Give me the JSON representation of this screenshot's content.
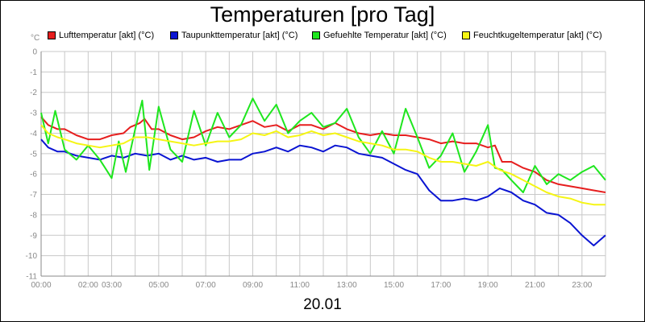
{
  "unit": "°C",
  "date": "20.01",
  "colors": {
    "Lufttemperatur": "#e61e1e",
    "Taupunkttemperatur": "#0a14d2",
    "Gefuehlte": "#1ee61e",
    "Feuchtkugel": "#f5f514"
  },
  "chart_data": {
    "type": "line",
    "title": "Temperaturen [pro Tag]",
    "xlabel": "20.01",
    "ylabel": "°C",
    "xlim": [
      0,
      24
    ],
    "ylim": [
      -11,
      0
    ],
    "x_ticks": [
      "00:00",
      "02:00",
      "03:00",
      "05:00",
      "07:00",
      "09:00",
      "11:00",
      "13:00",
      "15:00",
      "17:00",
      "19:00",
      "21:00",
      "23:00"
    ],
    "y_ticks": [
      "0",
      "-1",
      "-2",
      "-3",
      "-4",
      "-5",
      "-6",
      "-7",
      "-8",
      "-9",
      "-10",
      "-11"
    ],
    "series": [
      {
        "name": "Lufttemperatur [akt] (°C)",
        "color": "#e61e1e",
        "points": [
          [
            0,
            -3.2
          ],
          [
            0.3,
            -3.6
          ],
          [
            0.7,
            -3.8
          ],
          [
            1.0,
            -3.8
          ],
          [
            1.5,
            -4.1
          ],
          [
            2.0,
            -4.3
          ],
          [
            2.5,
            -4.3
          ],
          [
            3.0,
            -4.1
          ],
          [
            3.5,
            -4.0
          ],
          [
            3.8,
            -3.7
          ],
          [
            4.2,
            -3.5
          ],
          [
            4.4,
            -3.3
          ],
          [
            4.7,
            -3.8
          ],
          [
            5.0,
            -3.8
          ],
          [
            5.5,
            -4.1
          ],
          [
            6.0,
            -4.3
          ],
          [
            6.5,
            -4.2
          ],
          [
            7.0,
            -3.9
          ],
          [
            7.5,
            -3.7
          ],
          [
            8.0,
            -3.8
          ],
          [
            8.5,
            -3.6
          ],
          [
            9.0,
            -3.4
          ],
          [
            9.5,
            -3.7
          ],
          [
            10.0,
            -3.6
          ],
          [
            10.5,
            -3.9
          ],
          [
            11.0,
            -3.6
          ],
          [
            11.5,
            -3.6
          ],
          [
            12.0,
            -3.8
          ],
          [
            12.5,
            -3.5
          ],
          [
            13.0,
            -3.8
          ],
          [
            13.5,
            -4.0
          ],
          [
            14.0,
            -4.1
          ],
          [
            14.5,
            -4.0
          ],
          [
            15.0,
            -4.1
          ],
          [
            15.5,
            -4.1
          ],
          [
            16.0,
            -4.2
          ],
          [
            16.5,
            -4.3
          ],
          [
            17.0,
            -4.5
          ],
          [
            17.5,
            -4.4
          ],
          [
            18.0,
            -4.5
          ],
          [
            18.5,
            -4.5
          ],
          [
            19.0,
            -4.7
          ],
          [
            19.3,
            -4.6
          ],
          [
            19.6,
            -5.4
          ],
          [
            20.0,
            -5.4
          ],
          [
            20.5,
            -5.7
          ],
          [
            21.0,
            -5.9
          ],
          [
            21.5,
            -6.3
          ],
          [
            22.0,
            -6.5
          ],
          [
            22.5,
            -6.6
          ],
          [
            23.0,
            -6.7
          ],
          [
            23.5,
            -6.8
          ],
          [
            24.0,
            -6.9
          ]
        ]
      },
      {
        "name": "Taupunkttemperatur [akt] (°C)",
        "color": "#0a14d2",
        "points": [
          [
            0,
            -4.3
          ],
          [
            0.3,
            -4.7
          ],
          [
            0.7,
            -4.9
          ],
          [
            1.0,
            -4.9
          ],
          [
            1.5,
            -5.1
          ],
          [
            2.0,
            -5.2
          ],
          [
            2.5,
            -5.3
          ],
          [
            3.0,
            -5.1
          ],
          [
            3.5,
            -5.2
          ],
          [
            4.0,
            -5.0
          ],
          [
            4.5,
            -5.1
          ],
          [
            5.0,
            -5.0
          ],
          [
            5.5,
            -5.3
          ],
          [
            6.0,
            -5.1
          ],
          [
            6.5,
            -5.3
          ],
          [
            7.0,
            -5.2
          ],
          [
            7.5,
            -5.4
          ],
          [
            8.0,
            -5.3
          ],
          [
            8.5,
            -5.3
          ],
          [
            9.0,
            -5.0
          ],
          [
            9.5,
            -4.9
          ],
          [
            10.0,
            -4.7
          ],
          [
            10.5,
            -4.9
          ],
          [
            11.0,
            -4.6
          ],
          [
            11.5,
            -4.7
          ],
          [
            12.0,
            -4.9
          ],
          [
            12.5,
            -4.6
          ],
          [
            13.0,
            -4.7
          ],
          [
            13.5,
            -5.0
          ],
          [
            14.0,
            -5.1
          ],
          [
            14.5,
            -5.2
          ],
          [
            15.0,
            -5.5
          ],
          [
            15.5,
            -5.8
          ],
          [
            16.0,
            -6.0
          ],
          [
            16.5,
            -6.8
          ],
          [
            17.0,
            -7.3
          ],
          [
            17.5,
            -7.3
          ],
          [
            18.0,
            -7.2
          ],
          [
            18.5,
            -7.3
          ],
          [
            19.0,
            -7.1
          ],
          [
            19.5,
            -6.7
          ],
          [
            20.0,
            -6.9
          ],
          [
            20.5,
            -7.3
          ],
          [
            21.0,
            -7.5
          ],
          [
            21.5,
            -7.9
          ],
          [
            22.0,
            -8.0
          ],
          [
            22.5,
            -8.4
          ],
          [
            23.0,
            -9.0
          ],
          [
            23.5,
            -9.5
          ],
          [
            24.0,
            -9.0
          ]
        ]
      },
      {
        "name": "Gefuehlte Temperatur [akt] (°C)",
        "color": "#1ee61e",
        "points": [
          [
            0,
            -3.0
          ],
          [
            0.3,
            -4.5
          ],
          [
            0.6,
            -2.9
          ],
          [
            1.0,
            -4.8
          ],
          [
            1.5,
            -5.3
          ],
          [
            2.0,
            -4.6
          ],
          [
            2.5,
            -5.3
          ],
          [
            3.0,
            -6.2
          ],
          [
            3.3,
            -4.4
          ],
          [
            3.6,
            -5.9
          ],
          [
            4.0,
            -3.8
          ],
          [
            4.3,
            -2.4
          ],
          [
            4.6,
            -5.8
          ],
          [
            5.0,
            -2.7
          ],
          [
            5.5,
            -4.8
          ],
          [
            6.0,
            -5.4
          ],
          [
            6.5,
            -2.9
          ],
          [
            7.0,
            -4.6
          ],
          [
            7.5,
            -3.0
          ],
          [
            8.0,
            -4.2
          ],
          [
            8.5,
            -3.6
          ],
          [
            9.0,
            -2.3
          ],
          [
            9.5,
            -3.4
          ],
          [
            10.0,
            -2.6
          ],
          [
            10.5,
            -4.0
          ],
          [
            11.0,
            -3.4
          ],
          [
            11.5,
            -3.0
          ],
          [
            12.0,
            -3.7
          ],
          [
            12.5,
            -3.5
          ],
          [
            13.0,
            -2.8
          ],
          [
            13.5,
            -4.2
          ],
          [
            14.0,
            -5.0
          ],
          [
            14.5,
            -3.9
          ],
          [
            15.0,
            -5.0
          ],
          [
            15.5,
            -2.8
          ],
          [
            16.0,
            -4.2
          ],
          [
            16.5,
            -5.7
          ],
          [
            17.0,
            -5.1
          ],
          [
            17.5,
            -4.0
          ],
          [
            18.0,
            -5.9
          ],
          [
            18.5,
            -4.9
          ],
          [
            19.0,
            -3.6
          ],
          [
            19.3,
            -5.7
          ],
          [
            19.6,
            -5.8
          ],
          [
            20.0,
            -6.3
          ],
          [
            20.5,
            -6.9
          ],
          [
            21.0,
            -5.6
          ],
          [
            21.5,
            -6.5
          ],
          [
            22.0,
            -6.0
          ],
          [
            22.5,
            -6.3
          ],
          [
            23.0,
            -5.9
          ],
          [
            23.5,
            -5.6
          ],
          [
            24.0,
            -6.3
          ]
        ]
      },
      {
        "name": "Feuchtkugeltemperatur [akt] (°C)",
        "color": "#f5f514",
        "points": [
          [
            0,
            -3.6
          ],
          [
            0.3,
            -4.0
          ],
          [
            0.7,
            -4.2
          ],
          [
            1.0,
            -4.3
          ],
          [
            1.5,
            -4.5
          ],
          [
            2.0,
            -4.6
          ],
          [
            2.5,
            -4.7
          ],
          [
            3.0,
            -4.6
          ],
          [
            3.5,
            -4.5
          ],
          [
            4.0,
            -4.2
          ],
          [
            4.5,
            -4.2
          ],
          [
            5.0,
            -4.3
          ],
          [
            5.5,
            -4.4
          ],
          [
            6.0,
            -4.5
          ],
          [
            6.5,
            -4.6
          ],
          [
            7.0,
            -4.5
          ],
          [
            7.5,
            -4.4
          ],
          [
            8.0,
            -4.4
          ],
          [
            8.5,
            -4.3
          ],
          [
            9.0,
            -4.0
          ],
          [
            9.5,
            -4.1
          ],
          [
            10.0,
            -3.9
          ],
          [
            10.5,
            -4.2
          ],
          [
            11.0,
            -4.1
          ],
          [
            11.5,
            -3.9
          ],
          [
            12.0,
            -4.1
          ],
          [
            12.5,
            -4.0
          ],
          [
            13.0,
            -4.2
          ],
          [
            13.5,
            -4.4
          ],
          [
            14.0,
            -4.5
          ],
          [
            14.5,
            -4.6
          ],
          [
            15.0,
            -4.8
          ],
          [
            15.5,
            -4.8
          ],
          [
            16.0,
            -4.9
          ],
          [
            16.5,
            -5.2
          ],
          [
            17.0,
            -5.4
          ],
          [
            17.5,
            -5.4
          ],
          [
            18.0,
            -5.5
          ],
          [
            18.5,
            -5.6
          ],
          [
            19.0,
            -5.4
          ],
          [
            19.5,
            -5.8
          ],
          [
            20.0,
            -6.0
          ],
          [
            20.5,
            -6.3
          ],
          [
            21.0,
            -6.6
          ],
          [
            21.5,
            -6.9
          ],
          [
            22.0,
            -7.1
          ],
          [
            22.5,
            -7.2
          ],
          [
            23.0,
            -7.4
          ],
          [
            23.5,
            -7.5
          ],
          [
            24.0,
            -7.5
          ]
        ]
      }
    ]
  }
}
